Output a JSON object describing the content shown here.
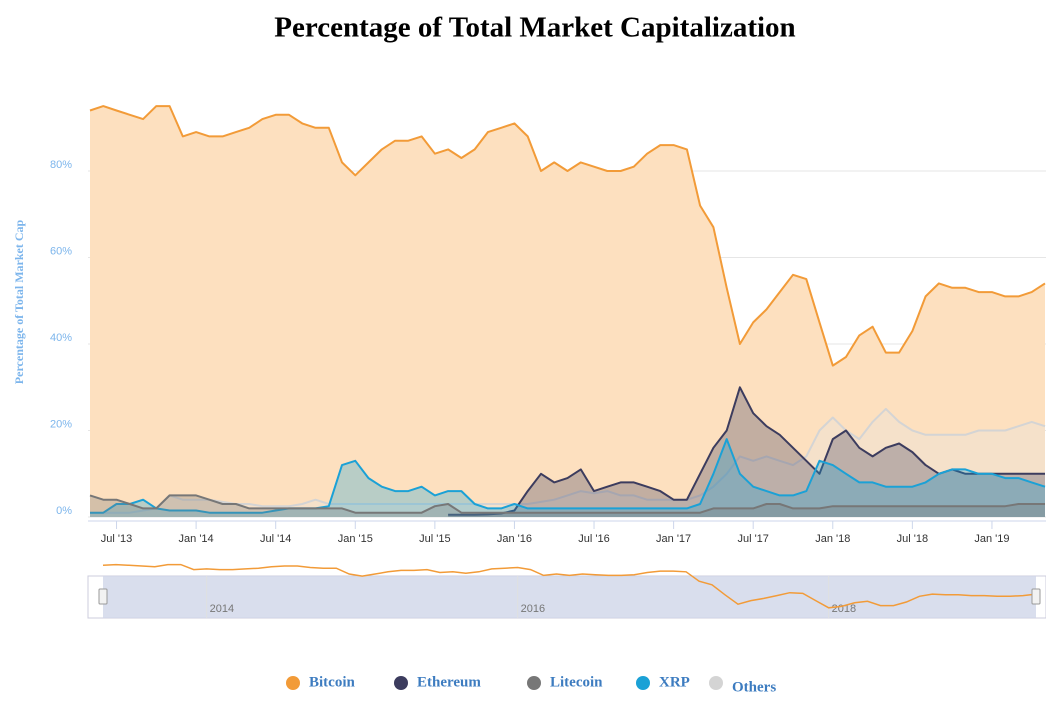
{
  "chart_data": {
    "type": "area",
    "title": "Percentage of Total Market Capitalization",
    "y_label": "Percentage of Total Market Cap",
    "x": [
      "2013-05",
      "2013-06",
      "2013-07",
      "2013-08",
      "2013-09",
      "2013-10",
      "2013-11",
      "2013-12",
      "2014-01",
      "2014-02",
      "2014-03",
      "2014-04",
      "2014-05",
      "2014-06",
      "2014-07",
      "2014-08",
      "2014-09",
      "2014-10",
      "2014-11",
      "2014-12",
      "2015-01",
      "2015-02",
      "2015-03",
      "2015-04",
      "2015-05",
      "2015-06",
      "2015-07",
      "2015-08",
      "2015-09",
      "2015-10",
      "2015-11",
      "2015-12",
      "2016-01",
      "2016-02",
      "2016-03",
      "2016-04",
      "2016-05",
      "2016-06",
      "2016-07",
      "2016-08",
      "2016-09",
      "2016-10",
      "2016-11",
      "2016-12",
      "2017-01",
      "2017-02",
      "2017-03",
      "2017-04",
      "2017-05",
      "2017-06",
      "2017-07",
      "2017-08",
      "2017-09",
      "2017-10",
      "2017-11",
      "2017-12",
      "2018-01",
      "2018-02",
      "2018-03",
      "2018-04",
      "2018-05",
      "2018-06",
      "2018-07",
      "2018-08",
      "2018-09",
      "2018-10",
      "2018-11",
      "2018-12",
      "2019-01",
      "2019-02",
      "2019-03",
      "2019-04",
      "2019-05"
    ],
    "xlim": [
      "2013-05",
      "2019-05"
    ],
    "xticks": [
      {
        "value": "2013-07",
        "label": "Jul '13"
      },
      {
        "value": "2014-01",
        "label": "Jan '14"
      },
      {
        "value": "2014-07",
        "label": "Jul '14"
      },
      {
        "value": "2015-01",
        "label": "Jan '15"
      },
      {
        "value": "2015-07",
        "label": "Jul '15"
      },
      {
        "value": "2016-01",
        "label": "Jan '16"
      },
      {
        "value": "2016-07",
        "label": "Jul '16"
      },
      {
        "value": "2017-01",
        "label": "Jan '17"
      },
      {
        "value": "2017-07",
        "label": "Jul '17"
      },
      {
        "value": "2018-01",
        "label": "Jan '18"
      },
      {
        "value": "2018-07",
        "label": "Jul '18"
      },
      {
        "value": "2019-01",
        "label": "Jan '19"
      }
    ],
    "ylim": [
      0,
      100
    ],
    "yticks": [
      {
        "value": 0,
        "label": "0%"
      },
      {
        "value": 20,
        "label": "20%"
      },
      {
        "value": 40,
        "label": "40%"
      },
      {
        "value": 60,
        "label": "60%"
      },
      {
        "value": 80,
        "label": "80%"
      }
    ],
    "grid": true,
    "legend": "bottom",
    "navigator": {
      "series": 0,
      "xticks": [
        {
          "value": "2014-01",
          "label": "2014"
        },
        {
          "value": "2016-01",
          "label": "2016"
        },
        {
          "value": "2018-01",
          "label": "2018"
        }
      ]
    },
    "series": [
      {
        "name": "Bitcoin",
        "color": "#f29b38",
        "fill": "#fde0bf",
        "values": [
          94,
          95,
          94,
          93,
          92,
          95,
          95,
          88,
          89,
          88,
          88,
          89,
          90,
          92,
          93,
          93,
          91,
          90,
          90,
          82,
          79,
          82,
          85,
          87,
          87,
          88,
          84,
          85,
          83,
          85,
          89,
          90,
          91,
          88,
          80,
          82,
          80,
          82,
          81,
          80,
          80,
          81,
          84,
          86,
          86,
          85,
          72,
          67,
          53,
          40,
          45,
          48,
          52,
          56,
          55,
          45,
          35,
          37,
          42,
          44,
          38,
          38,
          43,
          51,
          54,
          53,
          53,
          52,
          52,
          51,
          51,
          52,
          54
        ]
      },
      {
        "name": "Ethereum",
        "color": "#3c3c5e",
        "fill": "#3c3c5e",
        "values": [
          null,
          null,
          null,
          null,
          null,
          null,
          null,
          null,
          null,
          null,
          null,
          null,
          null,
          null,
          null,
          null,
          null,
          null,
          null,
          null,
          null,
          null,
          null,
          null,
          null,
          null,
          null,
          0.5,
          0.5,
          0.5,
          0.6,
          0.8,
          1.5,
          6,
          10,
          8,
          9,
          11,
          6,
          7,
          8,
          8,
          7,
          6,
          4,
          4,
          10,
          16,
          20,
          30,
          24,
          21,
          19,
          16,
          13,
          10,
          18,
          20,
          16,
          14,
          16,
          17,
          15,
          12,
          10,
          11,
          10,
          10,
          10,
          10,
          10,
          10,
          10
        ]
      },
      {
        "name": "Litecoin",
        "color": "#777777",
        "fill": "#777777",
        "values": [
          5,
          4,
          4,
          3,
          2,
          2,
          5,
          5,
          5,
          4,
          3,
          3,
          2,
          2,
          2,
          2,
          2,
          2,
          2,
          2,
          1,
          1,
          1,
          1,
          1,
          1,
          2.5,
          3,
          1,
          1,
          1,
          1,
          1,
          1,
          1,
          1,
          1,
          1,
          1,
          1,
          1,
          1,
          1,
          1,
          1,
          1,
          1,
          2,
          2,
          2,
          2,
          3,
          3,
          2,
          2,
          2,
          2.5,
          2.5,
          2.5,
          2.5,
          2.5,
          2.5,
          2.5,
          2.5,
          2.5,
          2.5,
          2.5,
          2.5,
          2.5,
          2.5,
          3,
          3,
          3
        ]
      },
      {
        "name": "XRP",
        "color": "#1ba1d6",
        "fill": "#1ba1d6",
        "values": [
          1,
          1,
          3,
          3,
          4,
          2,
          1.5,
          1.5,
          1.5,
          1,
          1,
          1,
          1,
          1,
          1.5,
          2,
          2,
          2,
          2.5,
          12,
          13,
          9,
          7,
          6,
          6,
          7,
          5,
          6,
          6,
          3,
          2,
          2,
          3,
          2,
          2,
          2,
          2,
          2,
          2,
          2,
          2,
          2,
          2,
          2,
          2,
          2,
          3,
          10,
          18,
          10,
          7,
          6,
          5,
          5,
          6,
          13,
          12,
          10,
          8,
          8,
          7,
          7,
          7,
          8,
          10,
          11,
          11,
          10,
          10,
          9,
          9,
          8,
          7
        ]
      },
      {
        "name": "Others",
        "color": "#d4d4d4",
        "fill": "#e3e3e3",
        "values": [
          1,
          1,
          1,
          1,
          1.5,
          2,
          5,
          4,
          4,
          4,
          3.5,
          3,
          3,
          2.5,
          2.5,
          2.5,
          3,
          4,
          3,
          3,
          3,
          3,
          3,
          3,
          3,
          3,
          3,
          3,
          3,
          3,
          3,
          3,
          3,
          3,
          3.5,
          4,
          5,
          6,
          5.5,
          6,
          5,
          5,
          4,
          4,
          4,
          4,
          5,
          7,
          10,
          14,
          13,
          14,
          13,
          12,
          14,
          20,
          23,
          20,
          18,
          22,
          25,
          22,
          20,
          19,
          19,
          19,
          19,
          20,
          20,
          20,
          21,
          22,
          21
        ]
      }
    ]
  }
}
